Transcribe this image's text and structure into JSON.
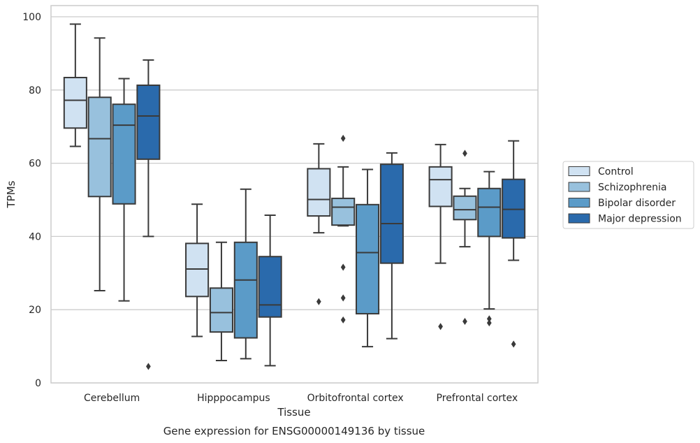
{
  "chart_data": {
    "type": "box",
    "caption": "Gene expression for ENSG00000149136 by tissue",
    "xlabel": "Tissue",
    "ylabel": "TPMs",
    "ylim": [
      0,
      102.5
    ],
    "yticks": [
      0,
      20,
      40,
      60,
      80,
      100
    ],
    "grid": "horizontal",
    "legend_position": "right",
    "categories": [
      "Cerebellum",
      "Hipppocampus",
      "Orbitofrontal cortex",
      "Prefrontal cortex"
    ],
    "series": [
      {
        "name": "Control",
        "color": "#d0e2f2",
        "boxes": [
          {
            "whislo": 64.6,
            "q1": 69.6,
            "med": 77.2,
            "q3": 83.4,
            "whishi": 98.0,
            "fliers": []
          },
          {
            "whislo": 12.7,
            "q1": 23.6,
            "med": 31.1,
            "q3": 38.1,
            "whishi": 48.8,
            "fliers": []
          },
          {
            "whislo": 41.0,
            "q1": 45.6,
            "med": 50.1,
            "q3": 58.5,
            "whishi": 65.3,
            "fliers": [
              22.2
            ]
          },
          {
            "whislo": 32.7,
            "q1": 48.2,
            "med": 55.5,
            "q3": 59.0,
            "whishi": 65.1,
            "fliers": [
              15.4
            ]
          }
        ]
      },
      {
        "name": "Schizophrenia",
        "color": "#98c1dd",
        "boxes": [
          {
            "whislo": 25.2,
            "q1": 50.9,
            "med": 66.7,
            "q3": 78.0,
            "whishi": 94.2,
            "fliers": []
          },
          {
            "whislo": 6.1,
            "q1": 13.9,
            "med": 19.2,
            "q3": 25.9,
            "whishi": 38.4,
            "fliers": []
          },
          {
            "whislo": 42.9,
            "q1": 43.1,
            "med": 48.0,
            "q3": 50.4,
            "whishi": 59.0,
            "fliers": [
              66.8,
              31.6,
              23.2,
              17.2
            ]
          },
          {
            "whislo": 37.2,
            "q1": 44.6,
            "med": 47.3,
            "q3": 51.0,
            "whishi": 53.1,
            "fliers": [
              62.7,
              16.8
            ]
          }
        ]
      },
      {
        "name": "Bipolar disorder",
        "color": "#5b9bc8",
        "boxes": [
          {
            "whislo": 22.4,
            "q1": 48.9,
            "med": 70.4,
            "q3": 76.1,
            "whishi": 83.1,
            "fliers": []
          },
          {
            "whislo": 6.6,
            "q1": 12.3,
            "med": 28.1,
            "q3": 38.4,
            "whishi": 52.9,
            "fliers": []
          },
          {
            "whislo": 9.9,
            "q1": 18.9,
            "med": 35.6,
            "q3": 48.7,
            "whishi": 58.3,
            "fliers": []
          },
          {
            "whislo": 20.2,
            "q1": 40.0,
            "med": 48.0,
            "q3": 53.1,
            "whishi": 57.7,
            "fliers": [
              17.5,
              16.4
            ]
          }
        ]
      },
      {
        "name": "Major depression",
        "color": "#2a6aac",
        "boxes": [
          {
            "whislo": 40.0,
            "q1": 61.1,
            "med": 72.9,
            "q3": 81.3,
            "whishi": 88.2,
            "fliers": [
              4.5
            ]
          },
          {
            "whislo": 4.7,
            "q1": 18.0,
            "med": 21.3,
            "q3": 34.5,
            "whishi": 45.8,
            "fliers": []
          },
          {
            "whislo": 12.1,
            "q1": 32.7,
            "med": 43.5,
            "q3": 59.7,
            "whishi": 62.8,
            "fliers": []
          },
          {
            "whislo": 33.5,
            "q1": 39.6,
            "med": 47.4,
            "q3": 55.6,
            "whishi": 66.1,
            "fliers": [
              10.6
            ]
          }
        ]
      }
    ]
  }
}
